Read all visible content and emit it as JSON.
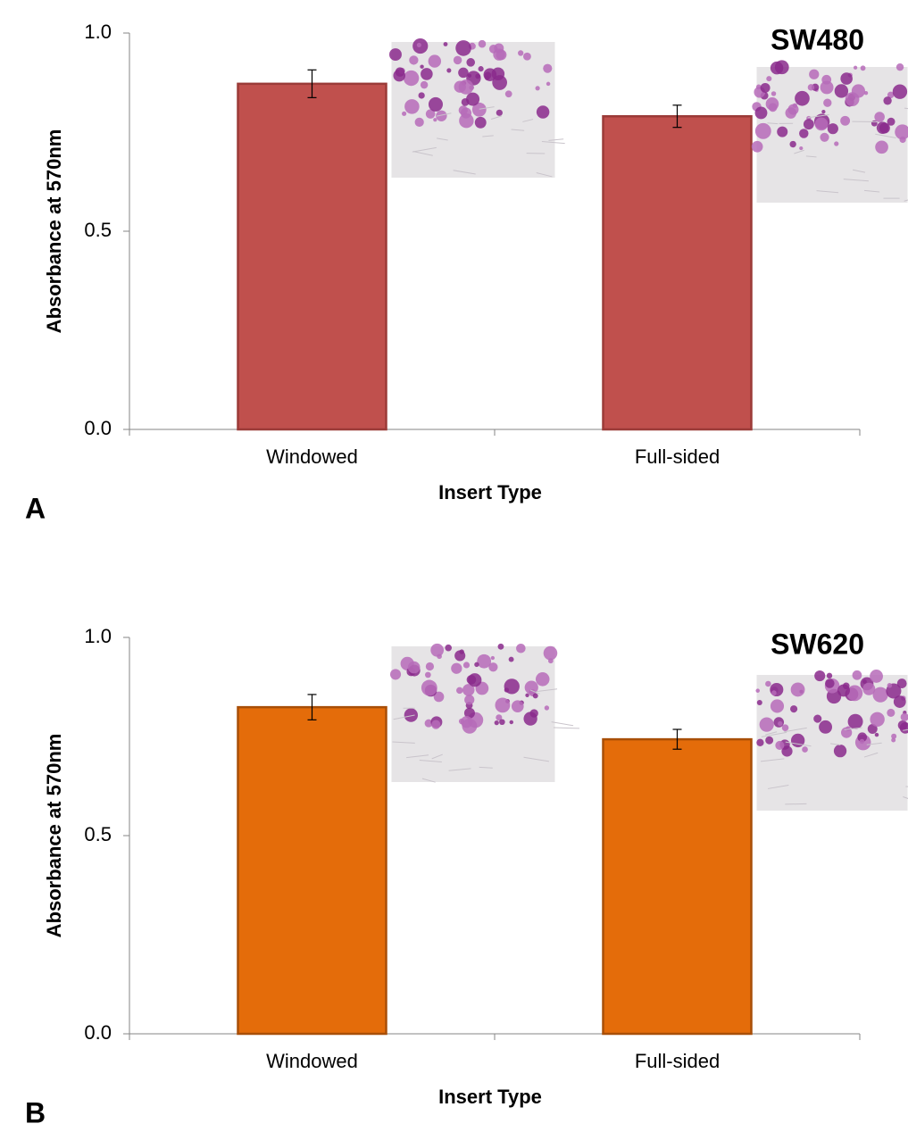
{
  "chart_data": [
    {
      "type": "bar",
      "title": "SW480",
      "panel": "A",
      "y_label": "Absorbance at 570nm",
      "x_label": "Insert Type",
      "categories": [
        "Windowed",
        "Full-sided"
      ],
      "values": [
        0.872,
        0.79
      ],
      "errors": [
        0.035,
        0.028
      ],
      "color": "#c0504d",
      "edge_color": "#9b3b38",
      "ylim": [
        0,
        1
      ],
      "yticks": [
        {
          "value": 0,
          "label": "0.0"
        },
        {
          "value": 0.5,
          "label": "0.5"
        },
        {
          "value": 1,
          "label": "1.0"
        }
      ]
    },
    {
      "type": "bar",
      "title": "SW620",
      "panel": "B",
      "y_label": "Absorbance at 570nm",
      "x_label": "Insert Type",
      "categories": [
        "Windowed",
        "Full-sided"
      ],
      "values": [
        0.824,
        0.743
      ],
      "errors": [
        0.032,
        0.025
      ],
      "color": "#e46c0a",
      "edge_color": "#a84f08",
      "ylim": [
        0,
        1
      ],
      "yticks": [
        {
          "value": 0,
          "label": "0.0"
        },
        {
          "value": 0.5,
          "label": "0.5"
        },
        {
          "value": 1,
          "label": "1.0"
        }
      ]
    }
  ]
}
